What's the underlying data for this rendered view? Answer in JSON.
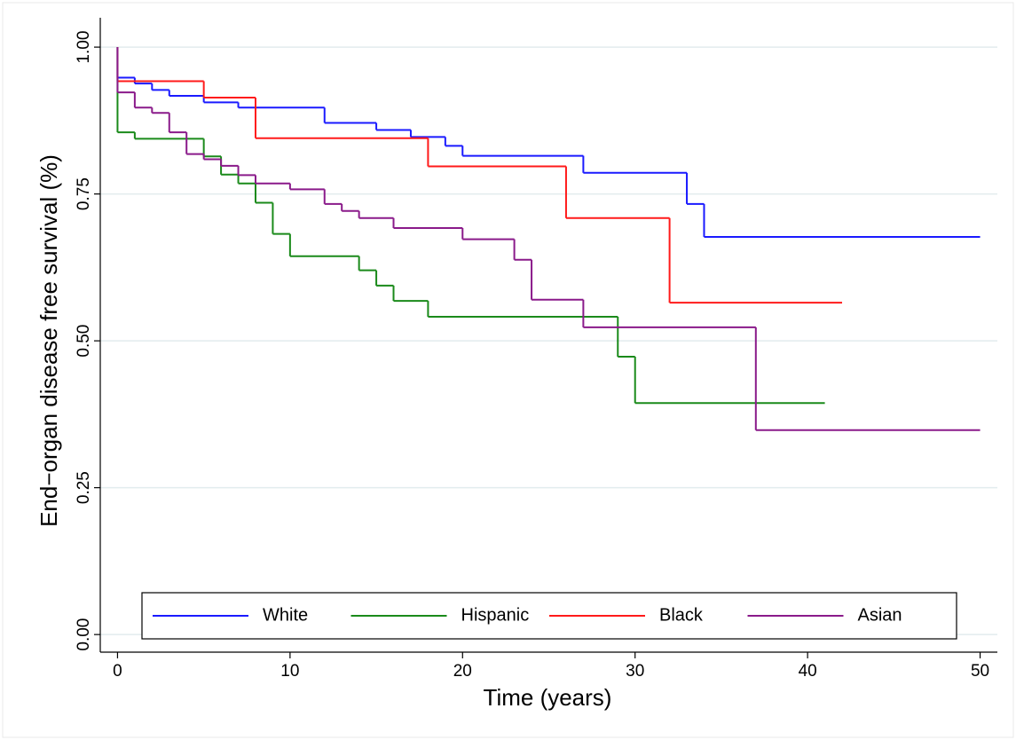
{
  "chart_data": {
    "type": "step",
    "x_label": "Time (years)",
    "y_label": "End−organ disease free survival (%)",
    "xlim": [
      -1,
      51
    ],
    "ylim": [
      -0.03,
      1.05
    ],
    "xticks": [
      0,
      10,
      20,
      30,
      40,
      50
    ],
    "yticks": [
      {
        "value": 0,
        "label": "0.00"
      },
      0.25,
      {
        "value": 0.5,
        "label": "0.50"
      },
      0.75,
      {
        "value": 1,
        "label": "1.00"
      }
    ],
    "grid": true,
    "legend": "bottom",
    "series": [
      {
        "name": "White",
        "color": "#1a1aff",
        "x": [
          0,
          0,
          1,
          2,
          3,
          5,
          7,
          12,
          15,
          17,
          19,
          20,
          27,
          33,
          34,
          50
        ],
        "values": [
          1,
          0.948,
          0.938,
          0.927,
          0.917,
          0.906,
          0.897,
          0.871,
          0.859,
          0.847,
          0.832,
          0.815,
          0.786,
          0.733,
          0.677,
          0.677
        ]
      },
      {
        "name": "Hispanic",
        "color": "#1a8a1a",
        "x": [
          0,
          0,
          1,
          5,
          6,
          7,
          8,
          9,
          10,
          14,
          15,
          16,
          18,
          29,
          30,
          41
        ],
        "values": [
          1,
          0.855,
          0.844,
          0.814,
          0.783,
          0.768,
          0.735,
          0.682,
          0.644,
          0.62,
          0.594,
          0.568,
          0.541,
          0.473,
          0.394,
          0.394
        ]
      },
      {
        "name": "Black",
        "color": "#ff1a1a",
        "x": [
          0,
          0,
          5,
          8,
          18,
          26,
          32,
          42
        ],
        "values": [
          1,
          0.942,
          0.914,
          0.845,
          0.797,
          0.709,
          0.565,
          0.565
        ]
      },
      {
        "name": "Asian",
        "color": "#8a1a8a",
        "x": [
          0,
          0,
          1,
          2,
          3,
          4,
          5,
          6,
          7,
          8,
          10,
          12,
          13,
          14,
          16,
          20,
          23,
          24,
          27,
          37,
          50
        ],
        "values": [
          1,
          0.923,
          0.897,
          0.888,
          0.855,
          0.818,
          0.809,
          0.798,
          0.782,
          0.768,
          0.758,
          0.733,
          0.721,
          0.709,
          0.692,
          0.673,
          0.638,
          0.57,
          0.523,
          0.348,
          0.348
        ]
      }
    ]
  }
}
